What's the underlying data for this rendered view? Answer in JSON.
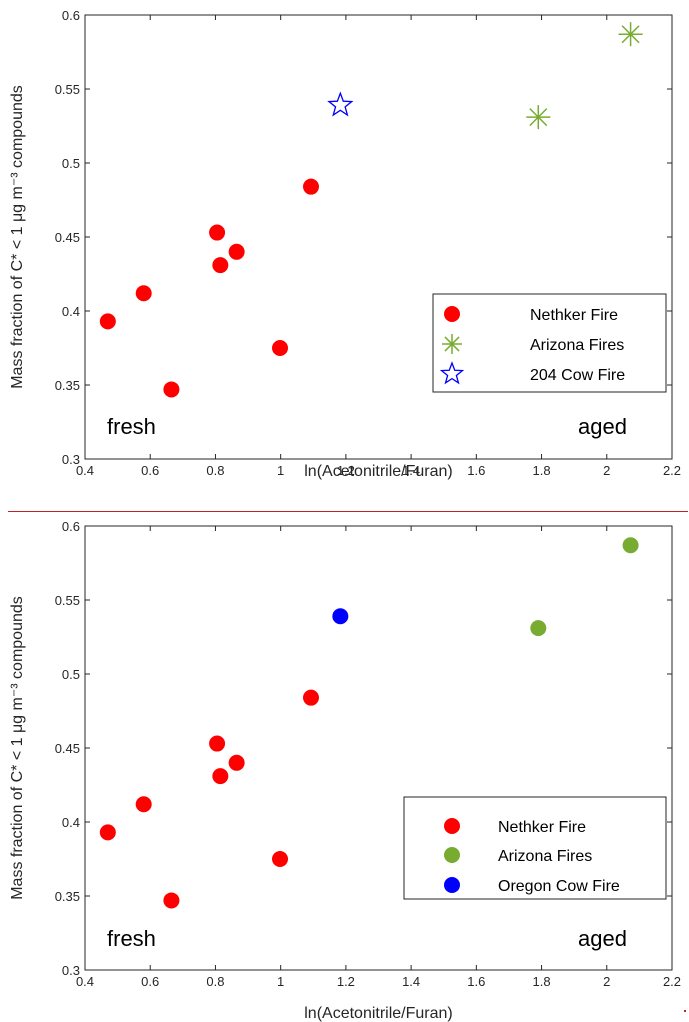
{
  "colors": {
    "nethker": "#ff0000",
    "arizona": "#77ac30",
    "cow": "#0000ff",
    "divider": "#c0202a",
    "axis": "#262626"
  },
  "chart_data": [
    {
      "type": "scatter",
      "xlabel": "ln(Acetonitrile/Furan)",
      "ylabel": "Mass fraction of C* < 1 μg m⁻³ compounds",
      "xlim": [
        0.4,
        2.2
      ],
      "ylim": [
        0.3,
        0.6
      ],
      "xticks": [
        "0.4",
        "0.6",
        "0.8",
        "1",
        "1.2",
        "1.4",
        "1.6",
        "1.8",
        "2",
        "2.2"
      ],
      "yticks": [
        "0.3",
        "0.35",
        "0.4",
        "0.45",
        "0.5",
        "0.55",
        "0.6"
      ],
      "grid": false,
      "legend_position": "lower-right",
      "annotations": [
        "fresh",
        "aged"
      ],
      "series": [
        {
          "name": "Nethker Fire",
          "marker": "circle",
          "color": "#ff0000",
          "points": [
            [
              0.47,
              0.393
            ],
            [
              0.58,
              0.412
            ],
            [
              0.665,
              0.347
            ],
            [
              0.805,
              0.453
            ],
            [
              0.815,
              0.431
            ],
            [
              0.865,
              0.44
            ],
            [
              0.998,
              0.375
            ],
            [
              1.093,
              0.484
            ]
          ]
        },
        {
          "name": "Arizona Fires",
          "marker": "asterisk",
          "color": "#77ac30",
          "points": [
            [
              1.79,
              0.531
            ],
            [
              2.073,
              0.587
            ]
          ]
        },
        {
          "name": "204 Cow Fire",
          "marker": "star",
          "color": "#0000ff",
          "points": [
            [
              1.183,
              0.539
            ]
          ]
        }
      ]
    },
    {
      "type": "scatter",
      "xlabel": "ln(Acetonitrile/Furan)",
      "ylabel": "Mass fraction of C* < 1 μg m⁻³ compounds",
      "xlim": [
        0.4,
        2.2
      ],
      "ylim": [
        0.3,
        0.6
      ],
      "xticks": [
        "0.4",
        "0.6",
        "0.8",
        "1",
        "1.2",
        "1.4",
        "1.6",
        "1.8",
        "2",
        "2.2"
      ],
      "yticks": [
        "0.3",
        "0.35",
        "0.4",
        "0.45",
        "0.5",
        "0.55",
        "0.6"
      ],
      "grid": false,
      "legend_position": "lower-right",
      "annotations": [
        "fresh",
        "aged"
      ],
      "series": [
        {
          "name": "Nethker Fire",
          "marker": "filled-circle",
          "color": "#ff0000",
          "points": [
            [
              0.47,
              0.393
            ],
            [
              0.58,
              0.412
            ],
            [
              0.665,
              0.347
            ],
            [
              0.805,
              0.453
            ],
            [
              0.815,
              0.431
            ],
            [
              0.865,
              0.44
            ],
            [
              0.998,
              0.375
            ],
            [
              1.093,
              0.484
            ]
          ]
        },
        {
          "name": "Arizona Fires",
          "marker": "filled-circle",
          "color": "#77ac30",
          "points": [
            [
              1.79,
              0.531
            ],
            [
              2.073,
              0.587
            ]
          ]
        },
        {
          "name": "Oregon Cow Fire",
          "marker": "filled-circle",
          "color": "#0000ff",
          "points": [
            [
              1.183,
              0.539
            ]
          ]
        }
      ]
    }
  ]
}
